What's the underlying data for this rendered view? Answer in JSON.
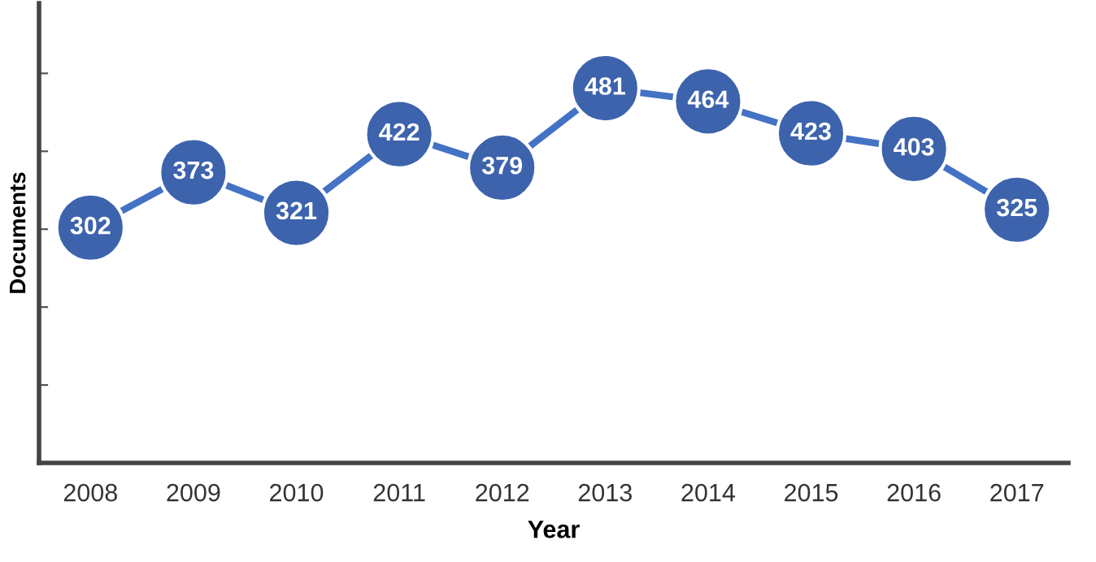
{
  "chart_data": {
    "type": "line",
    "xlabel": "Year",
    "ylabel": "Documents",
    "categories": [
      "2008",
      "2009",
      "2010",
      "2011",
      "2012",
      "2013",
      "2014",
      "2015",
      "2016",
      "2017"
    ],
    "series": [
      {
        "color": "#4472c4",
        "values": [
          302,
          373,
          321,
          422,
          379,
          481,
          464,
          423,
          403,
          325
        ]
      }
    ],
    "ylim": [
      0,
      590
    ],
    "yticks": [
      {
        "value": 0,
        "label": null
      },
      {
        "value": 100,
        "label": null
      },
      {
        "value": 200,
        "label": null
      },
      {
        "value": 300,
        "label": null
      },
      {
        "value": 400,
        "label": null
      },
      {
        "value": 500,
        "label": null
      }
    ],
    "tick_labels": "x",
    "grid": false,
    "legend": false,
    "marker": "circle",
    "line_style": "solid",
    "data_labels": true
  }
}
